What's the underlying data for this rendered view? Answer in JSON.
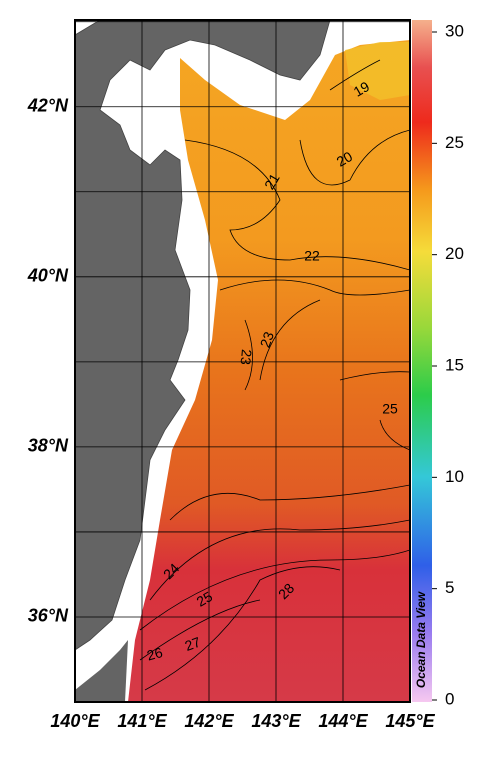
{
  "map": {
    "lonlim": [
      140,
      145
    ],
    "latlim": [
      35,
      43.02
    ],
    "lonticks": [
      {
        "value": 140,
        "label": "140°E"
      },
      {
        "value": 141,
        "label": "141°E"
      },
      {
        "value": 142,
        "label": "142°E"
      },
      {
        "value": 143,
        "label": "143°E"
      },
      {
        "value": 144,
        "label": "144°E"
      },
      {
        "value": 145,
        "label": "145°E"
      }
    ],
    "latticks": [
      {
        "value": 36,
        "label": "36°N"
      },
      {
        "value": 38,
        "label": "38°N"
      },
      {
        "value": 40,
        "label": "40°N"
      },
      {
        "value": 42,
        "label": "42°N"
      }
    ],
    "colorbar": {
      "lim": [
        0,
        30
      ],
      "ticks": [
        0,
        5,
        10,
        15,
        20,
        25,
        30
      ]
    },
    "contour_labels": [
      19,
      20,
      21,
      22,
      23,
      23,
      24,
      25,
      25,
      26,
      27,
      28
    ],
    "watermark": "Ocean Data View"
  }
}
